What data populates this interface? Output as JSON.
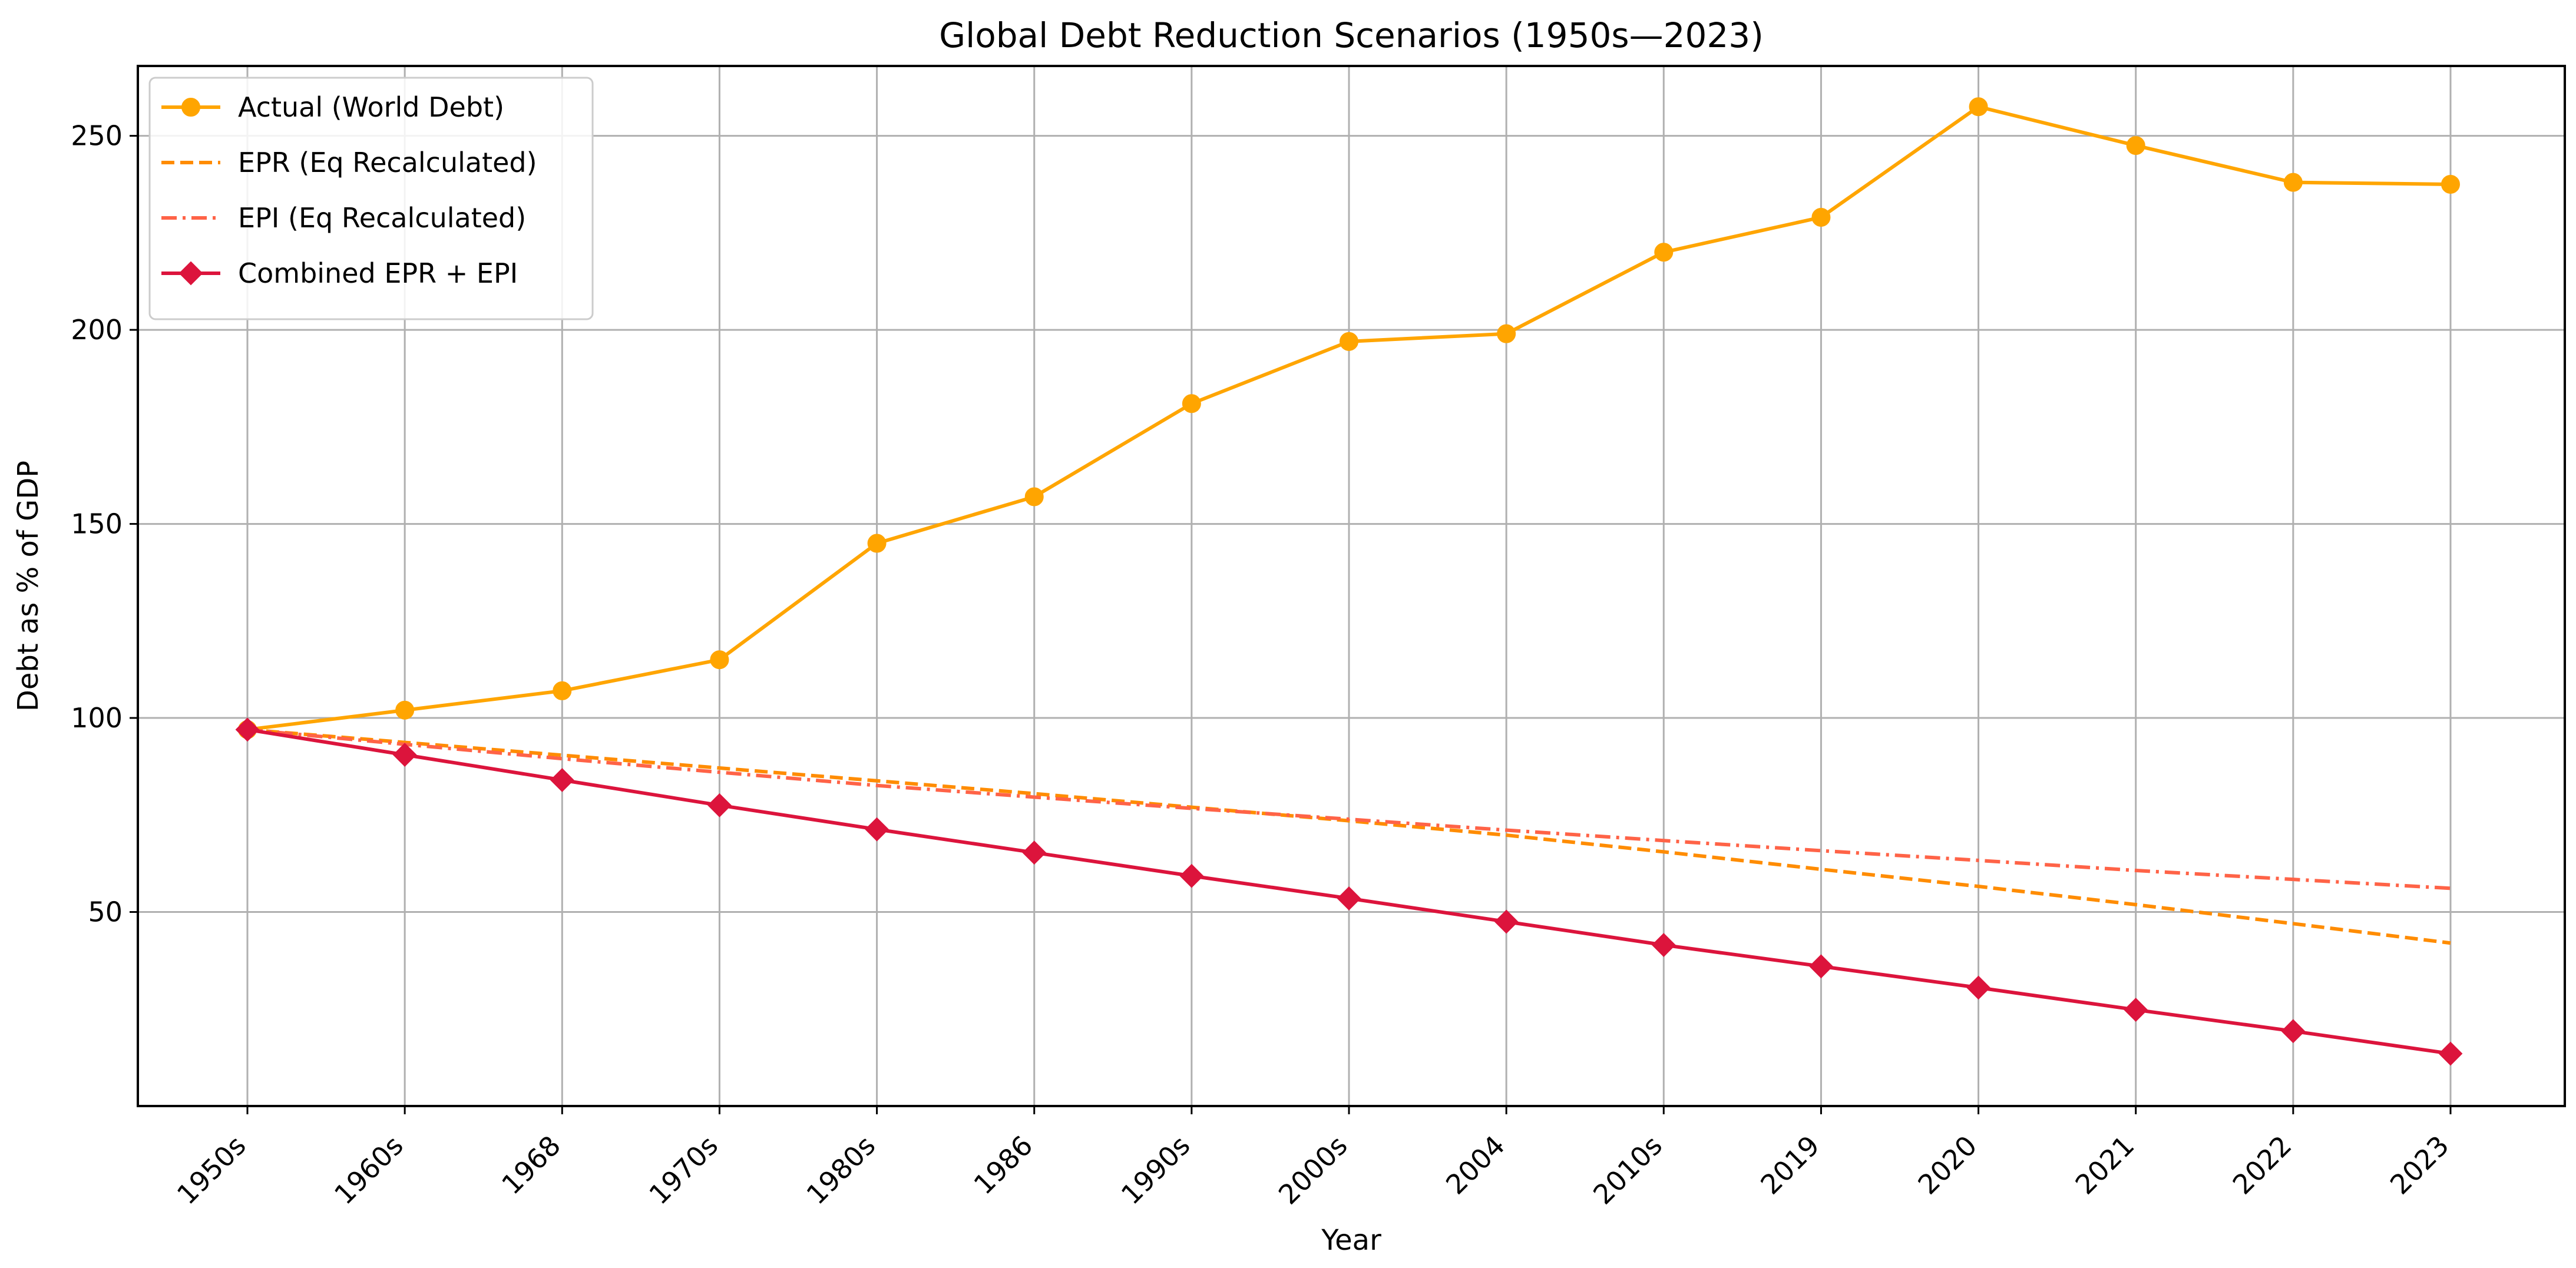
{
  "chart_data": {
    "type": "line",
    "title": "Global Debt Reduction Scenarios (1950s—2023)",
    "xlabel": "Year",
    "ylabel": "Debt as % of GDP",
    "categories": [
      "1950s",
      "1960s",
      "1968",
      "1970s",
      "1980s",
      "1986",
      "1990s",
      "2000s",
      "2004",
      "2010s",
      "2019",
      "2020",
      "2021",
      "2022",
      "2023"
    ],
    "ylim": [
      0,
      268
    ],
    "yticks": [
      50,
      100,
      150,
      200,
      250
    ],
    "grid": true,
    "legend_position": "top-left",
    "series": [
      {
        "name": "Actual (World Debt)",
        "color": "#FFA500",
        "style": "solid",
        "marker": "circle",
        "values": [
          97,
          102,
          107,
          115,
          145,
          157,
          181,
          197,
          199,
          220,
          229,
          257.5,
          247.5,
          238,
          237.5
        ]
      },
      {
        "name": "EPR (Eq Recalculated)",
        "color": "#FF8C00",
        "style": "dashed",
        "marker": "none",
        "values": [
          97,
          93.7,
          90.4,
          87.1,
          83.8,
          80.5,
          77.0,
          73.5,
          69.8,
          65.5,
          61.0,
          56.6,
          51.9,
          47.0,
          42.0
        ]
      },
      {
        "name": "EPI (Eq Recalculated)",
        "color": "#FF6347",
        "style": "dashdot",
        "marker": "none",
        "values": [
          97,
          93.2,
          89.5,
          86.0,
          82.6,
          79.6,
          76.7,
          73.9,
          71.1,
          68.4,
          65.8,
          63.3,
          60.7,
          58.4,
          56.1
        ]
      },
      {
        "name": "Combined EPR + EPI",
        "color": "#DC143C",
        "style": "solid",
        "marker": "diamond",
        "values": [
          97,
          90.5,
          84,
          77.5,
          71.3,
          65.3,
          59.3,
          53.5,
          47.5,
          41.5,
          36,
          30.5,
          24.8,
          19.3,
          13.5
        ]
      }
    ]
  }
}
